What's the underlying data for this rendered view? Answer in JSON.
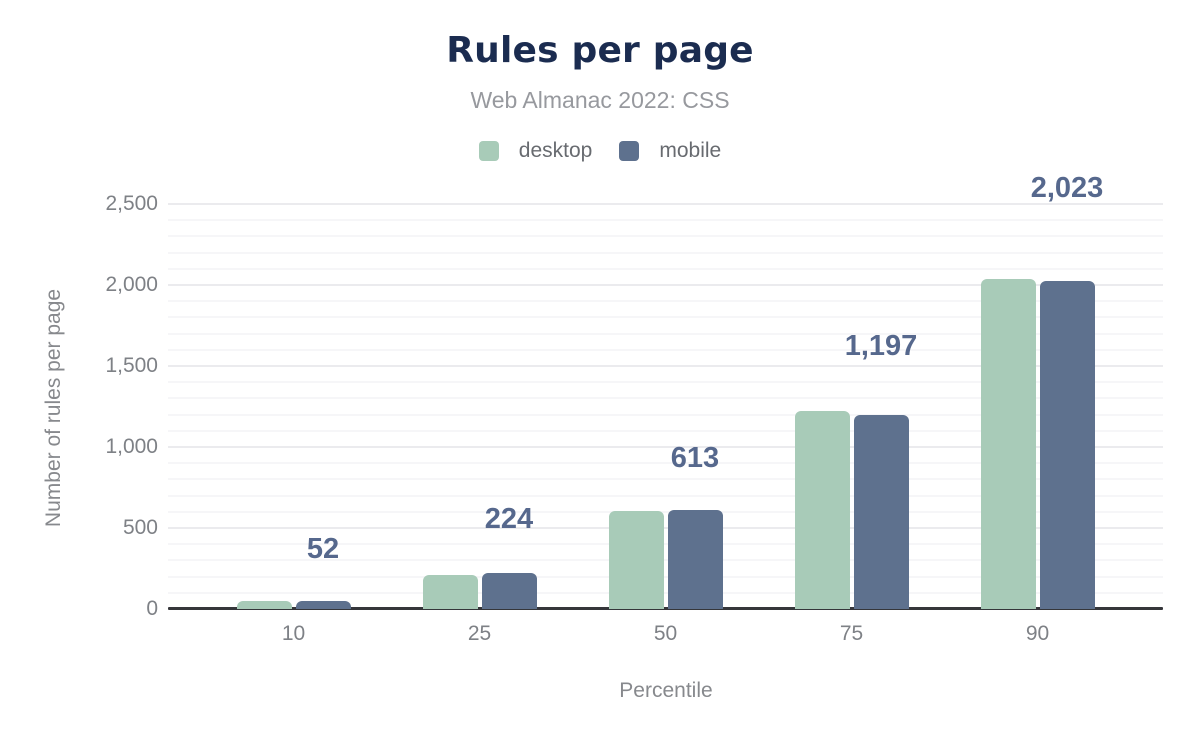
{
  "header": {
    "title": "Rules per page",
    "subtitle": "Web Almanac 2022: CSS"
  },
  "legend": [
    {
      "label": "desktop",
      "color": "#a8cbb8"
    },
    {
      "label": "mobile",
      "color": "#5e718e"
    }
  ],
  "colors": {
    "title": "#1b2c50",
    "subtitle": "#97999e",
    "axis_text": "#7e8186",
    "axis_title": "#87898d",
    "data_label": "#56688d",
    "baseline": "#35363a",
    "grid_major": "#ebebee",
    "grid_minor": "#f6f6f8",
    "desktop": "#a8cbb8",
    "mobile": "#5e718e"
  },
  "chart_data": {
    "type": "bar",
    "title": "Rules per page",
    "subtitle": "Web Almanac 2022: CSS",
    "categories": [
      "10",
      "25",
      "50",
      "75",
      "90"
    ],
    "series": [
      {
        "name": "desktop",
        "color": "#a8cbb8",
        "values": [
          50,
          212,
          607,
          1222,
          2040
        ]
      },
      {
        "name": "mobile",
        "color": "#5e718e",
        "values": [
          52,
          224,
          613,
          1197,
          2023
        ]
      }
    ],
    "data_labels": {
      "attached_to_series": "mobile",
      "values": [
        "52",
        "224",
        "613",
        "1,197",
        "2,023"
      ],
      "color": "#56688d"
    },
    "xlabel": "Percentile",
    "ylabel": "Number of rules per page",
    "ylim": [
      0,
      2500
    ],
    "yticks": [
      0,
      500,
      1000,
      1500,
      2000,
      2500
    ],
    "ytick_labels": [
      "0",
      "500",
      "1,000",
      "1,500",
      "2,000",
      "2,500"
    ],
    "grid": {
      "major_step": 500,
      "minor_step": 100,
      "vertical": false
    },
    "legend_position": "top"
  }
}
